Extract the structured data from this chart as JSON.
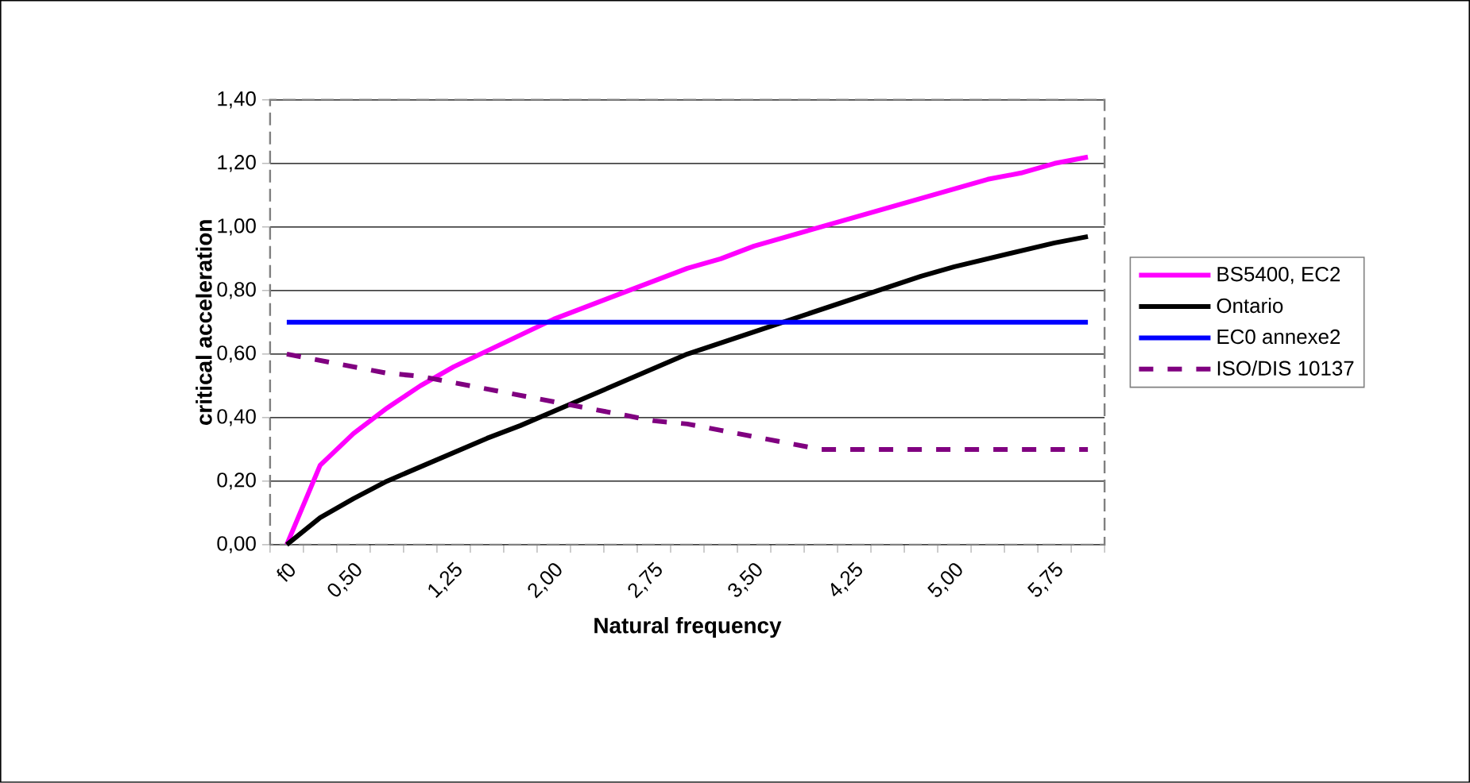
{
  "chart_data": {
    "type": "line",
    "xlabel": "Natural frequency",
    "ylabel": "critical acceleration",
    "categories": [
      "f0",
      null,
      "0,50",
      null,
      null,
      "1,25",
      null,
      null,
      "2,00",
      null,
      null,
      "2,75",
      null,
      null,
      "3,50",
      null,
      null,
      "4,25",
      null,
      null,
      "5,00",
      null,
      null,
      "5,75",
      null
    ],
    "series": [
      {
        "name": "BS5400, EC2",
        "color": "#ff00ff",
        "values": [
          0,
          0.25,
          0.35,
          0.43,
          0.5,
          0.56,
          0.61,
          0.66,
          0.71,
          0.75,
          0.79,
          0.83,
          0.87,
          0.9,
          0.94,
          0.97,
          1.0,
          1.03,
          1.06,
          1.09,
          1.12,
          1.15,
          1.17,
          1.2,
          1.22
        ]
      },
      {
        "name": "Ontario",
        "color": "#000000",
        "values": [
          0,
          0.085,
          0.145,
          0.2,
          0.245,
          0.29,
          0.335,
          0.375,
          0.42,
          0.465,
          0.51,
          0.555,
          0.6,
          0.635,
          0.67,
          0.705,
          0.74,
          0.775,
          0.81,
          0.845,
          0.875,
          0.9,
          0.925,
          0.95,
          0.97
        ]
      },
      {
        "name": "EC0 annexe2",
        "color": "#0000ff",
        "values": [
          0.7,
          0.7,
          0.7,
          0.7,
          0.7,
          0.7,
          0.7,
          0.7,
          0.7,
          0.7,
          0.7,
          0.7,
          0.7,
          0.7,
          0.7,
          0.7,
          0.7,
          0.7,
          0.7,
          0.7,
          0.7,
          0.7,
          0.7,
          0.7,
          0.7
        ]
      },
      {
        "name": "ISO/DIS 10137",
        "color": "#800080",
        "line_style": "dashed",
        "values": [
          0.6,
          0.58,
          0.56,
          0.54,
          0.53,
          0.51,
          0.49,
          0.47,
          0.45,
          0.43,
          0.41,
          0.39,
          0.38,
          0.36,
          0.34,
          0.32,
          0.3,
          0.3,
          0.3,
          0.3,
          0.3,
          0.3,
          0.3,
          0.3,
          0.3
        ]
      }
    ],
    "ylim": [
      0,
      1.4
    ],
    "yticks": [
      {
        "value": 0,
        "label": "0,00"
      },
      {
        "value": 0.2,
        "label": "0,20"
      },
      {
        "value": 0.4,
        "label": "0,40"
      },
      {
        "value": 0.6,
        "label": "0,60"
      },
      {
        "value": 0.8,
        "label": "0,80"
      },
      {
        "value": 1.0,
        "label": "1,00"
      },
      {
        "value": 1.2,
        "label": "1,20"
      },
      {
        "value": 1.4,
        "label": "1,40"
      }
    ],
    "grid": "y",
    "legend": "right",
    "marker": "none",
    "line_style": "solid"
  }
}
